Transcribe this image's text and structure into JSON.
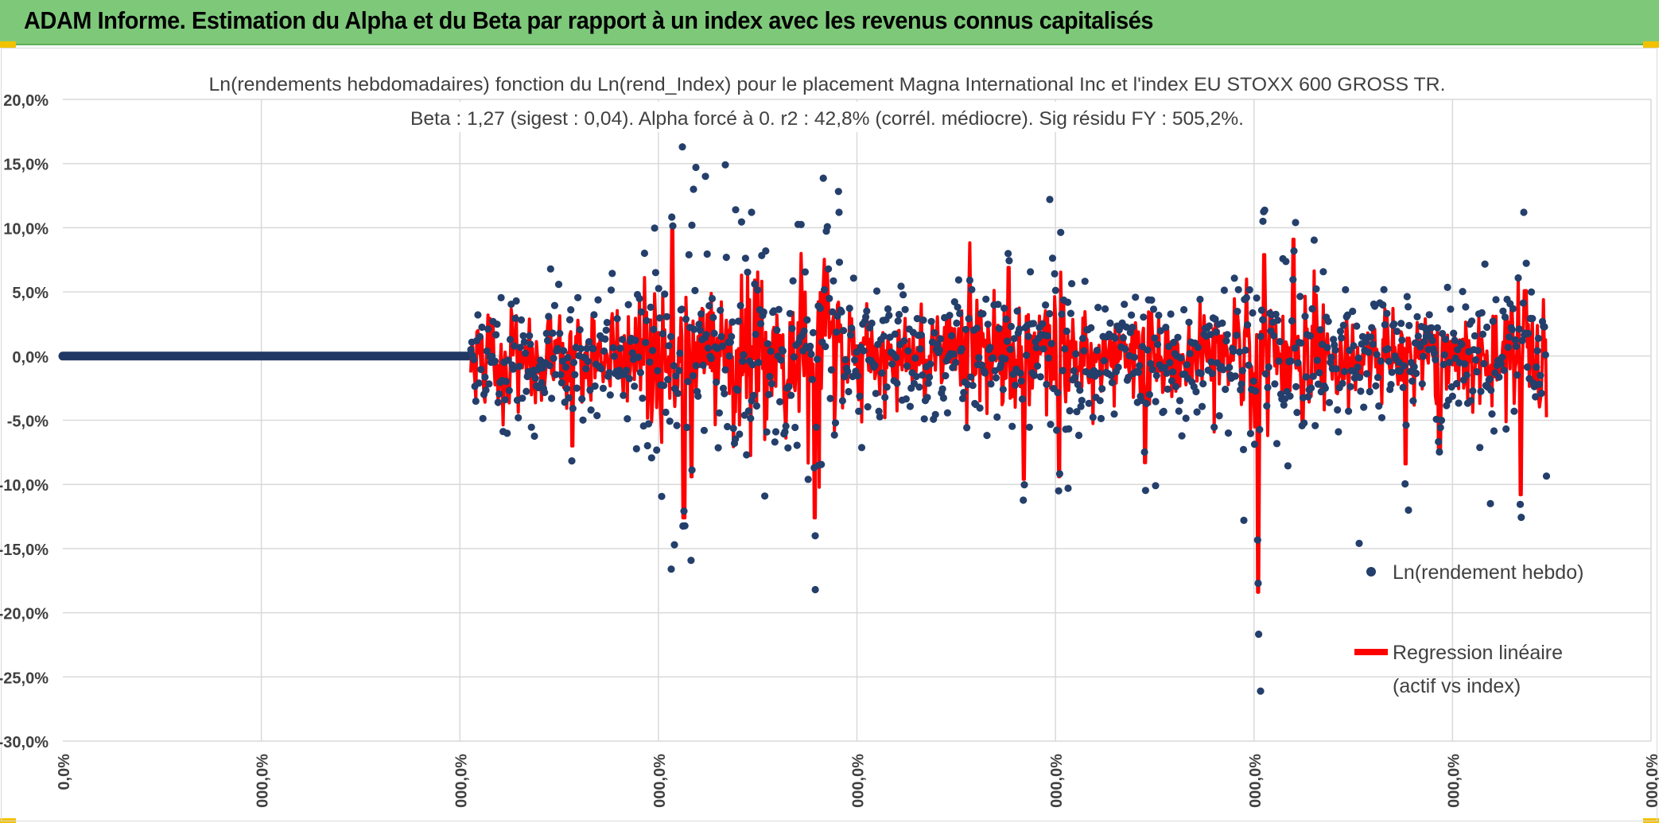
{
  "banner": {
    "title": "ADAM Informe. Estimation du Alpha et du Beta par rapport à un index avec les revenus connus capitalisés"
  },
  "colors": {
    "banner_bg": "#7ec87a",
    "scatter": "#243f6b",
    "regression": "#ff0000",
    "zero_line": "#1f3864",
    "grid": "#d9d9d9",
    "corner_accent": "#f2c200"
  },
  "chart_data": {
    "type": "scatter",
    "title": "Ln(rendements hebdomadaires) fonction du Ln(rend_Index) pour le placement Magna International Inc et l'index EU STOXX 600 GROSS TR.",
    "subtitle": "Beta : 1,27 (sigest : 0,04). Alpha forcé à 0. r2 : 42,8% (corrél. médiocre). Sig résidu FY : 505,2%.",
    "y_ticks": [
      "20,0%",
      "15,0%",
      "10,0%",
      "5,0%",
      "0,0%",
      "-5,0%",
      "-10,0%",
      "-15,0%",
      "-20,0%",
      "-25,0%",
      "-30,0%"
    ],
    "x_ticks": [
      "0,0%",
      "000,0%",
      "000,0%",
      "000,0%",
      "000,0%",
      "000,0%",
      "000,0%",
      "000,0%",
      "000,0%"
    ],
    "ylim": [
      -30,
      20
    ],
    "grid": true,
    "legend_position": "bottom-right",
    "series": [
      {
        "name": "Ln(rendement hebdo)",
        "kind": "scatter",
        "approx_point_count": 1050,
        "notable_extremes": [
          16.3,
          14.9,
          14.8,
          12.2,
          11.2,
          11.2,
          10.5,
          10.4,
          -12.0,
          -14.0,
          -14.7,
          -16.6,
          -17.7,
          -26.1
        ]
      },
      {
        "name": "Regression linéaire (actif vs index)",
        "legend_lines": [
          "Regression linéaire",
          "(actif vs index)"
        ],
        "kind": "line",
        "slope": 1.27,
        "intercept": 0,
        "range": [
          -18.4,
          10.1
        ]
      }
    ]
  }
}
